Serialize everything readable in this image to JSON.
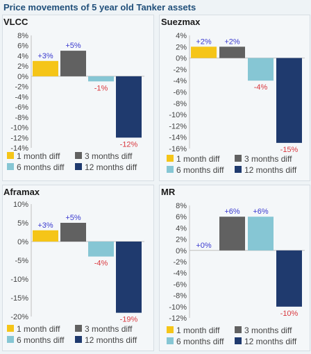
{
  "title": "Price movements of 5 year old Tanker assets",
  "colors": {
    "1 month diff": "#f5c518",
    "3 months diff": "#616161",
    "6 months diff": "#86c6d4",
    "12 months diff": "#1f3a6e",
    "positive_label": "#3a3acf",
    "negative_label": "#d9373d",
    "axis_text": "#444444",
    "chart_title": "#1a1a1a"
  },
  "chart_data": [
    {
      "type": "bar",
      "title": "VLCC",
      "categories": [
        "1 month diff",
        "3 months diff",
        "6 months diff",
        "12 months diff"
      ],
      "values": [
        3,
        5,
        -1,
        -12
      ],
      "data_labels": [
        "+3%",
        "+5%",
        "-1%",
        "-12%"
      ],
      "y_ticks": [
        8,
        6,
        4,
        2,
        0,
        -2,
        -4,
        -6,
        -8,
        -10,
        -12,
        -14
      ],
      "y_tick_labels": [
        "8%",
        "6%",
        "4%",
        "2%",
        "0%",
        "-2%",
        "-4%",
        "-6%",
        "-8%",
        "-10%",
        "-12%",
        "-14%"
      ],
      "ylim": [
        -14,
        8
      ],
      "legend": [
        "1 month diff",
        "3 months diff",
        "6 months diff",
        "12 months diff"
      ],
      "legend_position": "bottom",
      "grid": false
    },
    {
      "type": "bar",
      "title": "Suezmax",
      "categories": [
        "1 month diff",
        "3 months diff",
        "6 months diff",
        "12 months diff"
      ],
      "values": [
        2,
        2,
        -4,
        -15
      ],
      "data_labels": [
        "+2%",
        "+2%",
        "-4%",
        "-15%"
      ],
      "y_ticks": [
        4,
        2,
        0,
        -2,
        -4,
        -6,
        -8,
        -10,
        -12,
        -14,
        -16
      ],
      "y_tick_labels": [
        "4%",
        "2%",
        "0%",
        "-2%",
        "-4%",
        "-6%",
        "-8%",
        "-10%",
        "-12%",
        "-14%",
        "-16%"
      ],
      "ylim": [
        -16,
        4
      ],
      "legend": [
        "1 month diff",
        "3 months diff",
        "6 months diff",
        "12 months diff"
      ],
      "legend_position": "bottom",
      "grid": false
    },
    {
      "type": "bar",
      "title": "Aframax",
      "categories": [
        "1 month diff",
        "3 months diff",
        "6 months diff",
        "12 months diff"
      ],
      "values": [
        3,
        5,
        -4,
        -19
      ],
      "data_labels": [
        "+3%",
        "+5%",
        "-4%",
        "-19%"
      ],
      "y_ticks": [
        10,
        5,
        0,
        -5,
        -10,
        -15,
        -20
      ],
      "y_tick_labels": [
        "10%",
        "5%",
        "0%",
        "-5%",
        "-10%",
        "-15%",
        "-20%"
      ],
      "ylim": [
        -20,
        10
      ],
      "legend": [
        "1 month diff",
        "3 months diff",
        "6 months diff",
        "12 months diff"
      ],
      "legend_position": "bottom",
      "grid": false
    },
    {
      "type": "bar",
      "title": "MR",
      "categories": [
        "1 month diff",
        "3 months diff",
        "6 months diff",
        "12 months diff"
      ],
      "values": [
        0,
        6,
        6,
        -10
      ],
      "data_labels": [
        "+0%",
        "+6%",
        "+6%",
        "-10%"
      ],
      "y_ticks": [
        8,
        6,
        4,
        2,
        0,
        -2,
        -4,
        -6,
        -8,
        -10,
        -12
      ],
      "y_tick_labels": [
        "8%",
        "6%",
        "4%",
        "2%",
        "0%",
        "-2%",
        "-4%",
        "-6%",
        "-8%",
        "-10%",
        "-12%"
      ],
      "ylim": [
        -12,
        8
      ],
      "legend": [
        "1 month diff",
        "3 months diff",
        "6 months diff",
        "12 months diff"
      ],
      "legend_position": "bottom",
      "grid": false
    }
  ]
}
